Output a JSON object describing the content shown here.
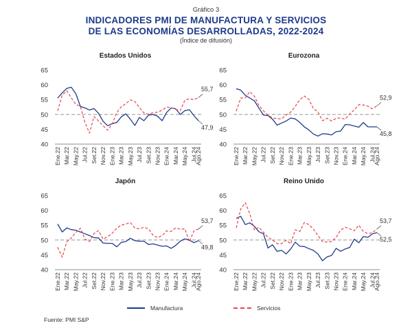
{
  "header": {
    "chart_number": "Gráfico 3",
    "title_line1": "INDICADORES PMI DE MANUFACTURA Y SERVICIOS",
    "title_line2": "DE LAS ECONOMÍAS DESARROLLADAS, 2022-2024",
    "subtitle": "(Índice de difusión)"
  },
  "legend": {
    "manufacturing": "Manufactura",
    "services": "Servicios"
  },
  "colors": {
    "manufacturing": "#1d3a8a",
    "services": "#e8434a",
    "reference_line": "#888888",
    "axis": "#666666"
  },
  "source": "Fuente: PMI S&P",
  "chart_data": [
    {
      "type": "line",
      "title": "Estados Unidos",
      "x": [
        "Ene.22",
        "Feb.22",
        "Mar.22",
        "Abr.22",
        "May.22",
        "Jun.22",
        "Jul.22",
        "Ago.22",
        "Set.22",
        "Oct.22",
        "Nov.22",
        "Dic.22",
        "Ene.23",
        "Feb.23",
        "Mar.23",
        "Abr.23",
        "May.23",
        "Jun.23",
        "Jul.23",
        "Ago.23",
        "Set.23",
        "Oct.23",
        "Nov.23",
        "Dic.23",
        "Ene.24",
        "Feb.24",
        "Mar.24",
        "Abr.24",
        "May.24",
        "Jun.24",
        "Jul.24",
        "Ago.24"
      ],
      "tick_labels": [
        "Ene.22",
        "Mar.22",
        "May.22",
        "Jul.22",
        "Set.22",
        "Nov.22",
        "Ene.23",
        "Mar.23",
        "May.23",
        "Jul.23",
        "Set.23",
        "Nov.23",
        "Ene.24",
        "Mar.24",
        "May.24",
        "Jul.24",
        "Ago.24"
      ],
      "ylim": [
        40,
        65
      ],
      "yticks": [
        40,
        45,
        50,
        55,
        60,
        65
      ],
      "reference_line": 50,
      "series": [
        {
          "name": "Manufactura",
          "values": [
            55.5,
            57.3,
            58.8,
            59.2,
            57.0,
            52.7,
            52.2,
            51.5,
            52.0,
            50.4,
            47.7,
            46.2,
            46.9,
            47.3,
            49.2,
            50.2,
            48.4,
            46.3,
            49.0,
            47.9,
            49.8,
            50.0,
            49.4,
            47.9,
            50.7,
            52.2,
            51.9,
            50.0,
            51.3,
            51.6,
            49.6,
            47.9
          ],
          "end_label": "47,9"
        },
        {
          "name": "Servicios",
          "values": [
            51.2,
            56.5,
            58.0,
            55.6,
            53.4,
            52.7,
            47.3,
            43.7,
            49.3,
            47.8,
            46.2,
            44.7,
            46.8,
            50.6,
            52.6,
            53.6,
            54.9,
            54.4,
            52.3,
            50.5,
            50.1,
            50.6,
            50.8,
            51.4,
            52.5,
            52.3,
            51.7,
            51.3,
            54.8,
            55.3,
            55.0,
            55.7
          ],
          "end_label": "55,7"
        }
      ]
    },
    {
      "type": "line",
      "title": "Eurozona",
      "x": [
        "Ene.22",
        "Feb.22",
        "Mar.22",
        "Abr.22",
        "May.22",
        "Jun.22",
        "Jul.22",
        "Ago.22",
        "Set.22",
        "Oct.22",
        "Nov.22",
        "Dic.22",
        "Ene.23",
        "Feb.23",
        "Mar.23",
        "Abr.23",
        "May.23",
        "Jun.23",
        "Jul.23",
        "Ago.23",
        "Set.23",
        "Oct.23",
        "Nov.23",
        "Dic.23",
        "Ene.24",
        "Feb.24",
        "Mar.24",
        "Abr.24",
        "May.24",
        "Jun.24",
        "Jul.24",
        "Ago.24"
      ],
      "tick_labels": [
        "Ene.22",
        "Mar.22",
        "May.22",
        "Jul.22",
        "Set.22",
        "Nov.22",
        "Ene.23",
        "Mar.23",
        "May.23",
        "Jul.23",
        "Set.23",
        "Nov.23",
        "Ene.24",
        "Mar.24",
        "May.24",
        "Jul.24",
        "Ago.24"
      ],
      "ylim": [
        40,
        65
      ],
      "yticks": [
        40,
        45,
        50,
        55,
        60,
        65
      ],
      "reference_line": 50,
      "series": [
        {
          "name": "Manufactura",
          "values": [
            58.7,
            58.2,
            56.5,
            55.5,
            54.6,
            52.1,
            49.8,
            49.6,
            48.4,
            46.4,
            47.1,
            47.8,
            48.8,
            48.5,
            47.3,
            45.8,
            44.8,
            43.4,
            42.7,
            43.5,
            43.4,
            43.1,
            44.2,
            44.4,
            46.6,
            46.5,
            46.1,
            45.7,
            47.3,
            45.8,
            45.8,
            45.8
          ],
          "end_label": "45,8"
        },
        {
          "name": "Servicios",
          "values": [
            51.1,
            55.5,
            55.6,
            57.7,
            56.1,
            53.0,
            51.2,
            49.8,
            48.8,
            48.6,
            48.5,
            49.8,
            50.8,
            52.7,
            55.0,
            56.2,
            55.1,
            52.0,
            50.9,
            47.9,
            48.7,
            47.8,
            48.7,
            48.8,
            48.4,
            50.2,
            51.5,
            53.3,
            53.2,
            52.8,
            51.9,
            52.9
          ],
          "end_label": "52,9"
        }
      ]
    },
    {
      "type": "line",
      "title": "Japón",
      "x": [
        "Ene.22",
        "Feb.22",
        "Mar.22",
        "Abr.22",
        "May.22",
        "Jun.22",
        "Jul.22",
        "Ago.22",
        "Set.22",
        "Oct.22",
        "Nov.22",
        "Dic.22",
        "Ene.23",
        "Feb.23",
        "Mar.23",
        "Abr.23",
        "May.23",
        "Jun.23",
        "Jul.23",
        "Ago.23",
        "Set.23",
        "Oct.23",
        "Nov.23",
        "Dic.23",
        "Ene.24",
        "Feb.24",
        "Mar.24",
        "Abr.24",
        "May.24",
        "Jun.24",
        "Jul.24",
        "Ago.24"
      ],
      "tick_labels": [
        "Ene.22",
        "Mar.22",
        "May.22",
        "Jul.22",
        "Set.22",
        "Nov.22",
        "Ene.23",
        "Mar.23",
        "May.23",
        "Jul.23",
        "Set.23",
        "Nov.23",
        "Ene.24",
        "Mar.24",
        "May.24",
        "Jul.24",
        "Ago.24"
      ],
      "ylim": [
        40,
        65
      ],
      "yticks": [
        40,
        45,
        50,
        55,
        60,
        65
      ],
      "reference_line": 50,
      "series": [
        {
          "name": "Manufactura",
          "values": [
            55.4,
            52.7,
            54.1,
            53.5,
            53.3,
            52.7,
            52.1,
            51.5,
            50.8,
            50.7,
            49.0,
            48.9,
            48.9,
            47.7,
            49.2,
            49.5,
            50.6,
            49.8,
            49.6,
            49.6,
            48.5,
            48.7,
            48.3,
            47.9,
            48.0,
            47.2,
            48.2,
            49.6,
            50.4,
            50.0,
            49.1,
            49.8
          ],
          "end_label": "49,8"
        },
        {
          "name": "Servicios",
          "values": [
            47.6,
            44.2,
            49.4,
            50.7,
            52.6,
            54.0,
            50.3,
            49.5,
            52.2,
            53.2,
            50.3,
            51.1,
            52.3,
            54.0,
            55.0,
            55.4,
            55.9,
            54.0,
            53.8,
            54.3,
            53.8,
            51.6,
            50.8,
            51.5,
            53.1,
            52.9,
            54.1,
            53.6,
            53.8,
            49.4,
            53.1,
            53.7
          ],
          "end_label": "53,7"
        }
      ]
    },
    {
      "type": "line",
      "title": "Reino Unido",
      "x": [
        "Ene.22",
        "Feb.22",
        "Mar.22",
        "Abr.22",
        "May.22",
        "Jun.22",
        "Jul.22",
        "Ago.22",
        "Set.22",
        "Oct.22",
        "Nov.22",
        "Dic.22",
        "Ene.23",
        "Feb.23",
        "Mar.23",
        "Abr.23",
        "May.23",
        "Jun.23",
        "Jul.23",
        "Ago.23",
        "Set.23",
        "Oct.23",
        "Nov.23",
        "Dic.23",
        "Ene.24",
        "Feb.24",
        "Mar.24",
        "Abr.24",
        "May.24",
        "Jun.24",
        "Jul.24",
        "Ago.24"
      ],
      "tick_labels": [
        "Ene.22",
        "Mar.22",
        "May.22",
        "Jul.22",
        "Set.22",
        "Nov.22",
        "Ene.23",
        "Mar.23",
        "May.23",
        "Jul.23",
        "Set.23",
        "Nov.23",
        "Ene.24",
        "Mar.24",
        "May.24",
        "Jul.24",
        "Ago.24"
      ],
      "ylim": [
        40,
        65
      ],
      "yticks": [
        40,
        45,
        50,
        55,
        60,
        65
      ],
      "reference_line": 50,
      "series": [
        {
          "name": "Manufactura",
          "values": [
            57.3,
            58.0,
            55.2,
            55.8,
            54.6,
            52.8,
            52.1,
            47.3,
            48.4,
            46.2,
            46.5,
            45.3,
            47.0,
            49.3,
            47.9,
            47.8,
            47.1,
            46.5,
            45.3,
            43.0,
            44.3,
            44.8,
            47.2,
            46.2,
            47.0,
            47.5,
            50.3,
            49.1,
            51.2,
            50.9,
            52.1,
            52.5
          ],
          "end_label": "52,5"
        },
        {
          "name": "Servicios",
          "values": [
            54.1,
            60.5,
            62.6,
            58.9,
            53.4,
            54.3,
            52.6,
            50.9,
            50.0,
            48.8,
            48.8,
            49.9,
            48.7,
            53.5,
            52.9,
            55.9,
            55.2,
            53.7,
            51.5,
            49.5,
            49.3,
            49.5,
            50.9,
            53.4,
            54.3,
            53.8,
            53.1,
            55.0,
            52.9,
            52.1,
            52.5,
            53.7
          ],
          "end_label": "53,7"
        }
      ]
    }
  ]
}
